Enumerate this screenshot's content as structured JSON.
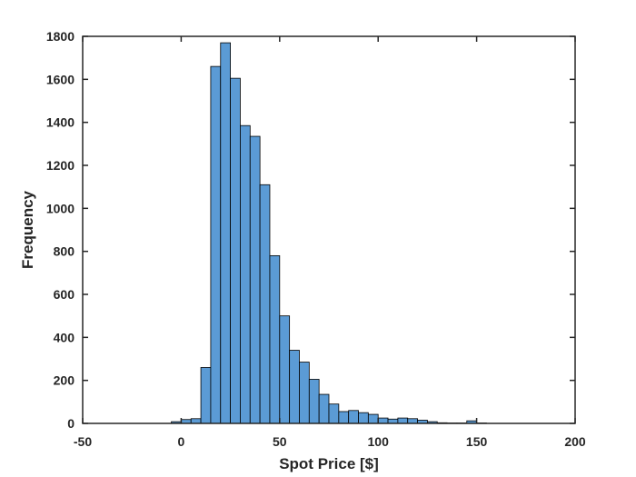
{
  "chart_data": {
    "type": "bar",
    "title": "",
    "xlabel": "Spot Price [$]",
    "ylabel": "Frequency",
    "xlim": [
      -50,
      200
    ],
    "ylim": [
      0,
      1800
    ],
    "xticks": [
      -50,
      0,
      50,
      100,
      150,
      200
    ],
    "xtick_labels": [
      "-50",
      "0",
      "50",
      "100",
      "150",
      "200"
    ],
    "yticks": [
      0,
      200,
      400,
      600,
      800,
      1000,
      1200,
      1400,
      1600,
      1800
    ],
    "ytick_labels": [
      "0",
      "200",
      "400",
      "600",
      "800",
      "1000",
      "1200",
      "1400",
      "1600",
      "1800"
    ],
    "bin_width": 5,
    "bins": [
      {
        "x0": -5,
        "x1": 0,
        "value": 8
      },
      {
        "x0": 0,
        "x1": 5,
        "value": 18
      },
      {
        "x0": 5,
        "x1": 10,
        "value": 22
      },
      {
        "x0": 10,
        "x1": 15,
        "value": 260
      },
      {
        "x0": 15,
        "x1": 20,
        "value": 1660
      },
      {
        "x0": 20,
        "x1": 25,
        "value": 1770
      },
      {
        "x0": 25,
        "x1": 30,
        "value": 1605
      },
      {
        "x0": 30,
        "x1": 35,
        "value": 1385
      },
      {
        "x0": 35,
        "x1": 40,
        "value": 1335
      },
      {
        "x0": 40,
        "x1": 45,
        "value": 1110
      },
      {
        "x0": 45,
        "x1": 50,
        "value": 780
      },
      {
        "x0": 50,
        "x1": 55,
        "value": 500
      },
      {
        "x0": 55,
        "x1": 60,
        "value": 340
      },
      {
        "x0": 60,
        "x1": 65,
        "value": 285
      },
      {
        "x0": 65,
        "x1": 70,
        "value": 205
      },
      {
        "x0": 70,
        "x1": 75,
        "value": 135
      },
      {
        "x0": 75,
        "x1": 80,
        "value": 90
      },
      {
        "x0": 80,
        "x1": 85,
        "value": 55
      },
      {
        "x0": 85,
        "x1": 90,
        "value": 60
      },
      {
        "x0": 90,
        "x1": 95,
        "value": 50
      },
      {
        "x0": 95,
        "x1": 100,
        "value": 42
      },
      {
        "x0": 100,
        "x1": 105,
        "value": 25
      },
      {
        "x0": 105,
        "x1": 110,
        "value": 20
      },
      {
        "x0": 110,
        "x1": 115,
        "value": 25
      },
      {
        "x0": 115,
        "x1": 120,
        "value": 22
      },
      {
        "x0": 120,
        "x1": 125,
        "value": 15
      },
      {
        "x0": 125,
        "x1": 130,
        "value": 8
      },
      {
        "x0": 130,
        "x1": 135,
        "value": 3
      },
      {
        "x0": 135,
        "x1": 140,
        "value": 2
      },
      {
        "x0": 140,
        "x1": 145,
        "value": 2
      },
      {
        "x0": 145,
        "x1": 150,
        "value": 12
      },
      {
        "x0": 150,
        "x1": 155,
        "value": 2
      }
    ],
    "grid": false,
    "legend": "none",
    "colors": {
      "bar_fill": "#5b9bd5",
      "bar_edge": "#000000",
      "axis": "#262626"
    }
  }
}
